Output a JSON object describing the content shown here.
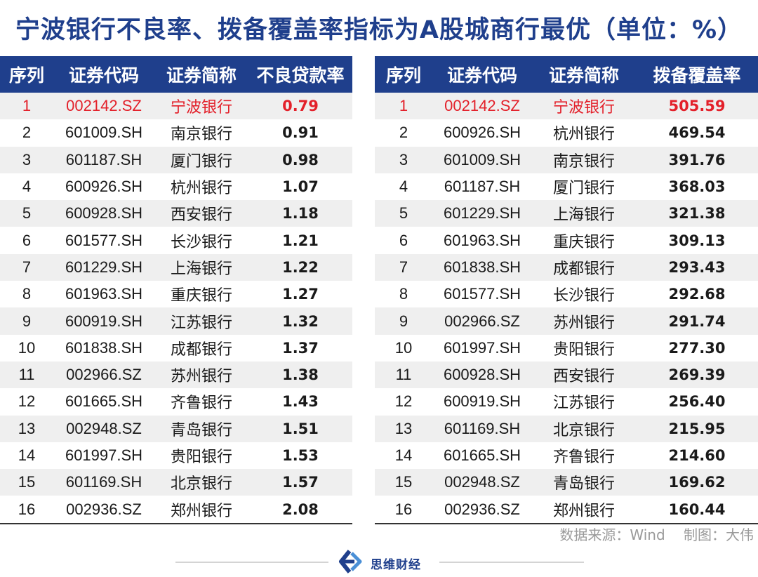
{
  "title": "宁波银行不良率、拨备覆盖率指标为A股城商行最优（单位：%）",
  "colors": {
    "header_bg": "#1f3f8c",
    "highlight": "#e3202a",
    "stripe": "#efefef"
  },
  "chart_data": [
    {
      "type": "table",
      "columns": [
        "序列",
        "证券代码",
        "证券简称",
        "不良贷款率"
      ],
      "rows": [
        [
          "1",
          "002142.SZ",
          "宁波银行",
          "0.79"
        ],
        [
          "2",
          "601009.SH",
          "南京银行",
          "0.91"
        ],
        [
          "3",
          "601187.SH",
          "厦门银行",
          "0.98"
        ],
        [
          "4",
          "600926.SH",
          "杭州银行",
          "1.07"
        ],
        [
          "5",
          "600928.SH",
          "西安银行",
          "1.18"
        ],
        [
          "6",
          "601577.SH",
          "长沙银行",
          "1.21"
        ],
        [
          "7",
          "601229.SH",
          "上海银行",
          "1.22"
        ],
        [
          "8",
          "601963.SH",
          "重庆银行",
          "1.27"
        ],
        [
          "9",
          "600919.SH",
          "江苏银行",
          "1.32"
        ],
        [
          "10",
          "601838.SH",
          "成都银行",
          "1.37"
        ],
        [
          "11",
          "002966.SZ",
          "苏州银行",
          "1.38"
        ],
        [
          "12",
          "601665.SH",
          "齐鲁银行",
          "1.43"
        ],
        [
          "13",
          "002948.SZ",
          "青岛银行",
          "1.51"
        ],
        [
          "14",
          "601997.SH",
          "贵阳银行",
          "1.53"
        ],
        [
          "15",
          "601169.SH",
          "北京银行",
          "1.57"
        ],
        [
          "16",
          "002936.SZ",
          "郑州银行",
          "2.08"
        ]
      ]
    },
    {
      "type": "table",
      "columns": [
        "序列",
        "证券代码",
        "证券简称",
        "拨备覆盖率"
      ],
      "rows": [
        [
          "1",
          "002142.SZ",
          "宁波银行",
          "505.59"
        ],
        [
          "2",
          "600926.SH",
          "杭州银行",
          "469.54"
        ],
        [
          "3",
          "601009.SH",
          "南京银行",
          "391.76"
        ],
        [
          "4",
          "601187.SH",
          "厦门银行",
          "368.03"
        ],
        [
          "5",
          "601229.SH",
          "上海银行",
          "321.38"
        ],
        [
          "6",
          "601963.SH",
          "重庆银行",
          "309.13"
        ],
        [
          "7",
          "601838.SH",
          "成都银行",
          "293.43"
        ],
        [
          "8",
          "601577.SH",
          "长沙银行",
          "292.68"
        ],
        [
          "9",
          "002966.SZ",
          "苏州银行",
          "291.74"
        ],
        [
          "10",
          "601997.SH",
          "贵阳银行",
          "277.30"
        ],
        [
          "11",
          "600928.SH",
          "西安银行",
          "269.39"
        ],
        [
          "12",
          "600919.SH",
          "江苏银行",
          "256.40"
        ],
        [
          "13",
          "601169.SH",
          "北京银行",
          "215.95"
        ],
        [
          "14",
          "601665.SH",
          "齐鲁银行",
          "214.60"
        ],
        [
          "15",
          "002948.SZ",
          "青岛银行",
          "169.62"
        ],
        [
          "16",
          "002936.SZ",
          "郑州银行",
          "160.44"
        ]
      ]
    }
  ],
  "source": "数据来源：Wind　 制图：大伟",
  "logo": {
    "name": "思维财经",
    "icon": "sweijing-logo-icon"
  }
}
